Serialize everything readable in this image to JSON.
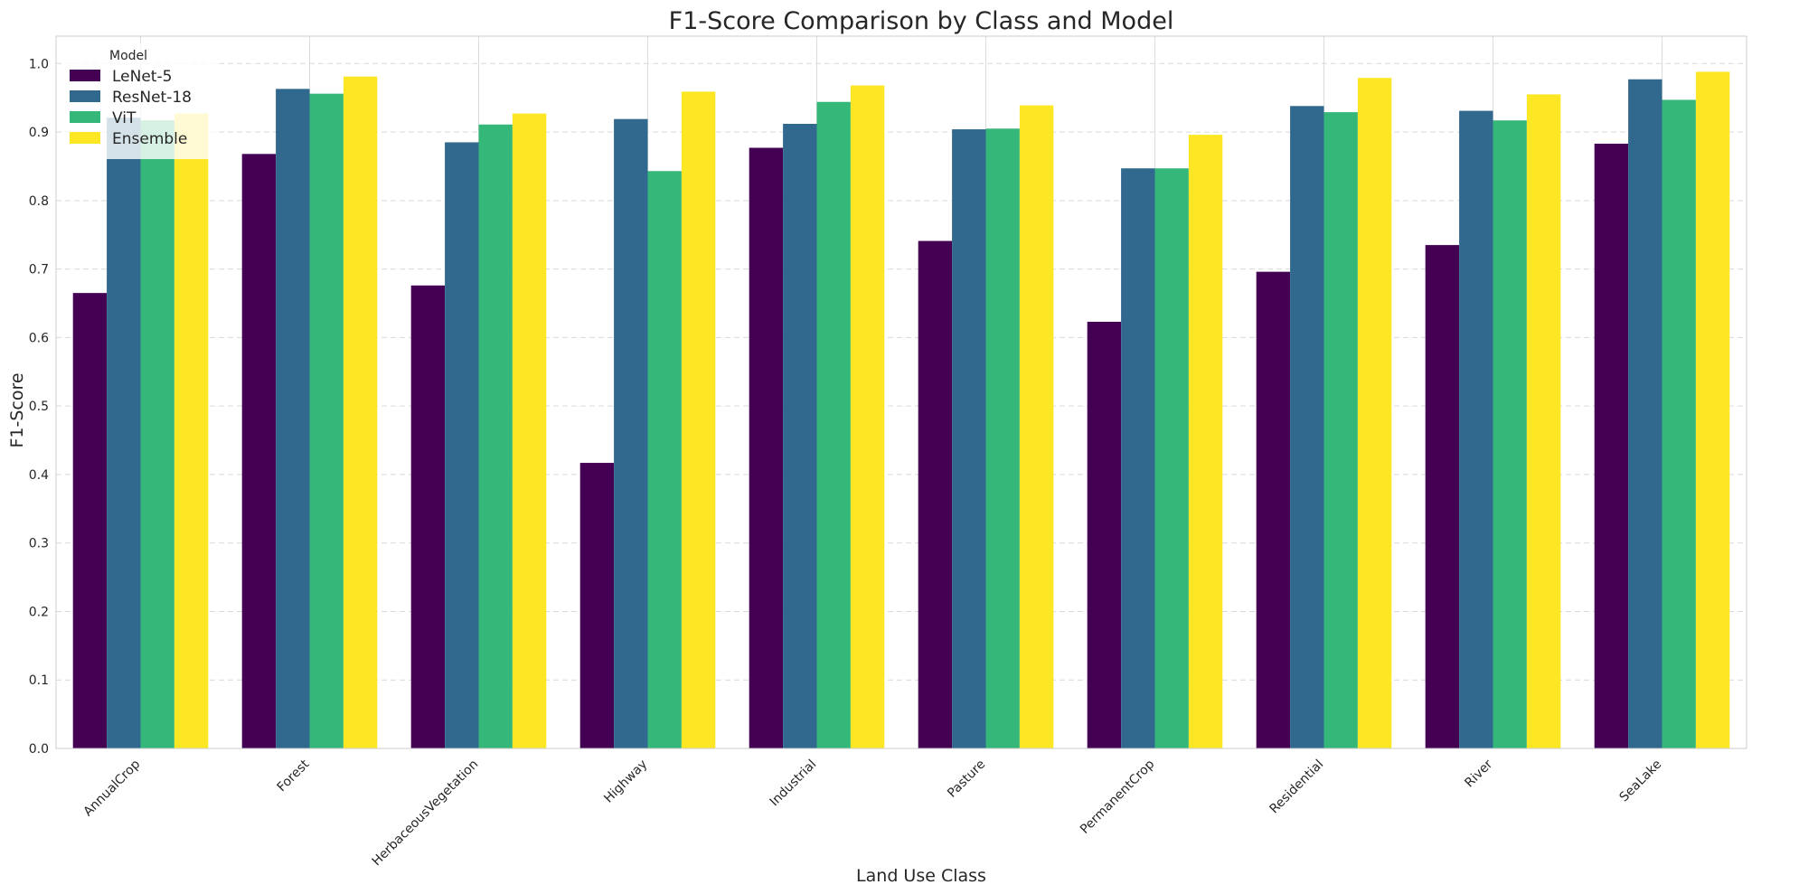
{
  "chart_data": {
    "type": "bar",
    "title": "F1-Score Comparison by Class and Model",
    "xlabel": "Land Use Class",
    "ylabel": "F1-Score",
    "ylim": [
      0,
      1.04
    ],
    "yticks": [
      "0.0",
      "0.1",
      "0.2",
      "0.3",
      "0.4",
      "0.5",
      "0.6",
      "0.7",
      "0.8",
      "0.9",
      "1.0"
    ],
    "grid": true,
    "legend": {
      "title": "Model",
      "placement": "top-left"
    },
    "categories": [
      "AnnualCrop",
      "Forest",
      "HerbaceousVegetation",
      "Highway",
      "Industrial",
      "Pasture",
      "PermanentCrop",
      "Residential",
      "River",
      "SeaLake"
    ],
    "series": [
      {
        "name": "LeNet-5",
        "color": "#440154",
        "values": [
          0.665,
          0.868,
          0.676,
          0.417,
          0.877,
          0.741,
          0.623,
          0.696,
          0.735,
          0.883
        ]
      },
      {
        "name": "ResNet-18",
        "color": "#31688e",
        "values": [
          0.921,
          0.963,
          0.885,
          0.919,
          0.912,
          0.904,
          0.847,
          0.938,
          0.931,
          0.977
        ]
      },
      {
        "name": "ViT",
        "color": "#35b779",
        "values": [
          0.917,
          0.956,
          0.911,
          0.843,
          0.944,
          0.905,
          0.847,
          0.929,
          0.917,
          0.947
        ]
      },
      {
        "name": "Ensemble",
        "color": "#fde725",
        "values": [
          0.927,
          0.981,
          0.927,
          0.959,
          0.968,
          0.939,
          0.896,
          0.979,
          0.955,
          0.988
        ]
      }
    ]
  }
}
